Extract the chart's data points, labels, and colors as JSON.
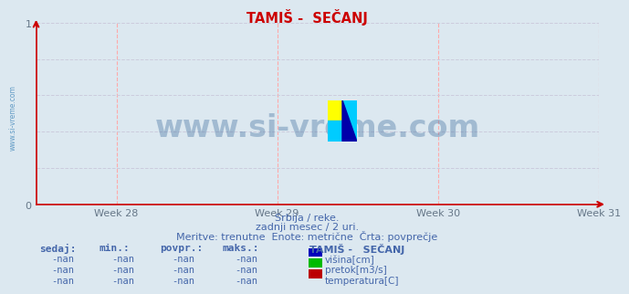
{
  "title": "TAMIŠ -  SEČANJ",
  "title_color": "#cc0000",
  "background_color": "#dce8f0",
  "plot_bg_color": "#dce8f0",
  "axis_color": "#cc0000",
  "grid_color_v": "#ffaaaa",
  "grid_color_h": "#ccccdd",
  "ylim": [
    0,
    1
  ],
  "xlabels": [
    "Week 28",
    "Week 29",
    "Week 30",
    "Week 31"
  ],
  "xlabel_color": "#667788",
  "tick_color": "#667788",
  "watermark": "www.si-vreme.com",
  "watermark_color": "#336699",
  "watermark_alpha": 0.35,
  "side_label": "www.si-vreme.com",
  "side_label_color": "#4488bb",
  "subtitle1": "Srbija / reke.",
  "subtitle2": "zadnji mesec / 2 uri.",
  "subtitle3": "Meritve: trenutne  Enote: metrične  Črta: povprečje",
  "subtitle_color": "#4466aa",
  "legend_title": "TAMIŠ -   SEČANJ",
  "legend_items": [
    {
      "label": "višina[cm]",
      "color": "#0000bb"
    },
    {
      "label": "pretok[m3/s]",
      "color": "#00bb00"
    },
    {
      "label": "temperatura[C]",
      "color": "#bb0000"
    }
  ],
  "legend_header": [
    "sedaj:",
    "min.:",
    "povpr.:",
    "maks.:"
  ],
  "legend_values": [
    "-nan",
    "-nan",
    "-nan",
    "-nan"
  ],
  "table_color": "#4466aa",
  "logo_yellow": "#ffff00",
  "logo_cyan": "#00ccff",
  "logo_blue": "#0000aa"
}
